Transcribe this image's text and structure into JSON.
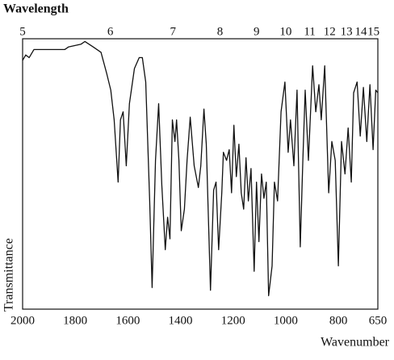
{
  "chart_data": {
    "type": "line",
    "title": "Wavelength",
    "xlabel": "Wavenumber",
    "ylabel": "Transmittance",
    "color": "#111111",
    "xlim": [
      2000,
      650
    ],
    "xticks": [
      2000,
      1800,
      1600,
      1400,
      1200,
      1000,
      800,
      650
    ],
    "x2ticks": [
      5,
      6,
      7,
      8,
      9,
      10,
      11,
      12,
      13,
      14,
      15
    ],
    "ylim": [
      0,
      100
    ],
    "x": [
      2000,
      1988,
      1975,
      1957,
      1902,
      1846,
      1840,
      1825,
      1778,
      1763,
      1732,
      1702,
      1680,
      1665,
      1652,
      1637,
      1628,
      1618,
      1606,
      1594,
      1575,
      1557,
      1545,
      1532,
      1517,
      1508,
      1495,
      1483,
      1471,
      1458,
      1449,
      1440,
      1431,
      1421,
      1415,
      1406,
      1397,
      1385,
      1375,
      1363,
      1348,
      1332,
      1323,
      1311,
      1302,
      1286,
      1274,
      1265,
      1255,
      1243,
      1237,
      1225,
      1215,
      1206,
      1197,
      1188,
      1178,
      1169,
      1160,
      1151,
      1142,
      1132,
      1120,
      1111,
      1102,
      1092,
      1083,
      1074,
      1065,
      1052,
      1043,
      1031,
      1018,
      1003,
      991,
      982,
      969,
      957,
      945,
      935,
      926,
      914,
      898,
      886,
      874,
      865,
      852,
      837,
      825,
      812,
      800,
      788,
      775,
      763,
      751,
      742,
      729,
      717,
      705,
      692,
      680,
      668,
      658,
      650
    ],
    "values": [
      92,
      94,
      93,
      96,
      96,
      96,
      96,
      97,
      98,
      99,
      97,
      95,
      87,
      81,
      70,
      47,
      70,
      73,
      53,
      76,
      89,
      93,
      93,
      84,
      40,
      8,
      55,
      76,
      46,
      22,
      34,
      26,
      70,
      62,
      70,
      55,
      29,
      37,
      55,
      71,
      53,
      45,
      53,
      74,
      61,
      7,
      44,
      47,
      22,
      43,
      58,
      55,
      59,
      43,
      68,
      49,
      61,
      43,
      37,
      56,
      40,
      52,
      14,
      47,
      25,
      50,
      41,
      47,
      5,
      16,
      47,
      40,
      73,
      84,
      58,
      70,
      53,
      81,
      23,
      55,
      81,
      55,
      90,
      73,
      83,
      70,
      90,
      43,
      62,
      55,
      16,
      62,
      50,
      67,
      47,
      80,
      84,
      64,
      82,
      62,
      83,
      59,
      81,
      80
    ]
  }
}
